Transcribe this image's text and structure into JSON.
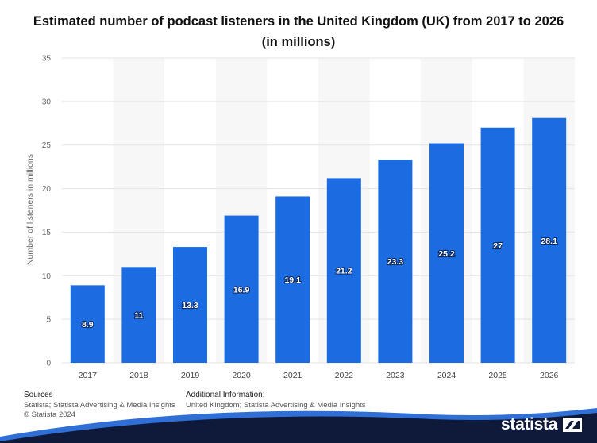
{
  "title": "Estimated number of podcast listeners in the United Kingdom (UK) from 2017 to 2026 (in millions)",
  "chart_data": {
    "type": "bar",
    "title": "Estimated number of podcast listeners in the United Kingdom (UK) from 2017 to 2026 (in millions)",
    "categories": [
      "2017",
      "2018",
      "2019",
      "2020",
      "2021",
      "2022",
      "2023",
      "2024",
      "2025",
      "2026"
    ],
    "values": [
      8.9,
      11,
      13.3,
      16.9,
      19.1,
      21.2,
      23.3,
      25.2,
      27,
      28.1
    ],
    "data_labels": [
      "8.9",
      "11",
      "13.3",
      "16.9",
      "19.1",
      "21.2",
      "23.3",
      "25.2",
      "27",
      "28.1"
    ],
    "xlabel": "",
    "ylabel": "Number of listeners in millions",
    "ylim": [
      0,
      35
    ],
    "yticks": [
      0,
      5,
      10,
      15,
      20,
      25,
      30,
      35
    ],
    "grid": true,
    "legend": "none",
    "bar_color": "#1b6ce0"
  },
  "footer": {
    "sources_heading": "Sources",
    "sources_line1": "Statista; Statista Advertising & Media Insights",
    "sources_line2": "© Statista 2024",
    "info_heading": "Additional Information:",
    "info_line1": "United Kingdom; Statista Advertising & Media Insights"
  },
  "brand": {
    "name": "statista",
    "band_color": "#0f1a3a",
    "accent_color": "#2f6fd6"
  }
}
